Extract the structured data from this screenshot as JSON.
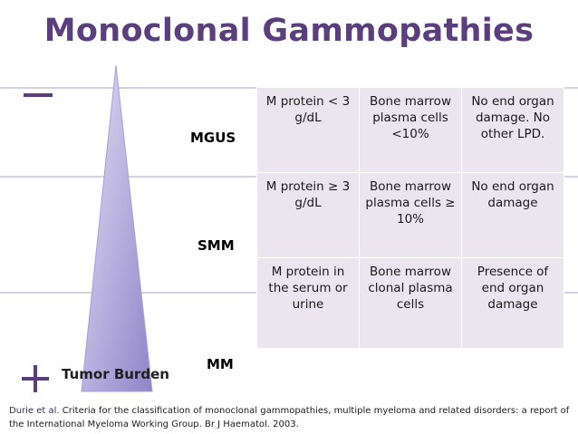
{
  "title": "Monoclonal Gammopathies",
  "colors": {
    "title": "#5b3f7c",
    "accent": "#5b3f7c",
    "triangle_fill": "#b7ade0",
    "cell_bg": "#ebe5ef"
  },
  "side_icons": {
    "minus": "−",
    "plus": "+"
  },
  "tumor_label": "Tumor Burden",
  "rows": [
    {
      "label": "MGUS",
      "cells": [
        "M protein < 3 g/dL",
        "Bone marrow plasma cells <10%",
        "No end organ damage. No other LPD."
      ]
    },
    {
      "label": "SMM",
      "cells": [
        "M protein ≥ 3 g/dL",
        "Bone marrow plasma cells ≥ 10%",
        "No end organ damage"
      ]
    },
    {
      "label": "MM",
      "cells": [
        "M protein in the serum or urine",
        "Bone marrow clonal plasma cells",
        "Presence of end organ damage"
      ]
    }
  ],
  "citation": {
    "link_text": "Durie et al.",
    "text": " Criteria for the classification of monoclonal gammopathies, multiple myeloma and related disorders: a report of the International Myeloma Working Group. Br J Haematol. 2003."
  }
}
